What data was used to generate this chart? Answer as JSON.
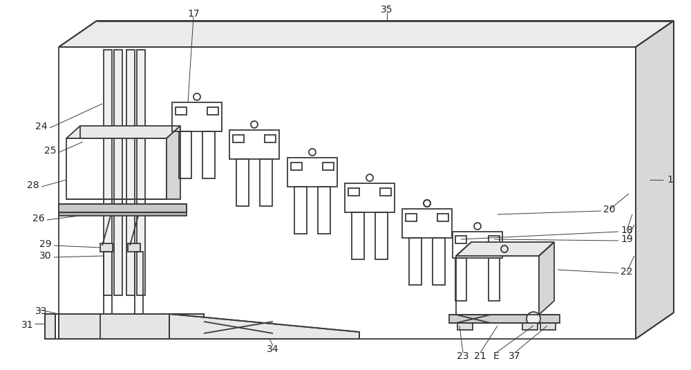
{
  "bg_color": "#ffffff",
  "line_color": "#3a3a3a",
  "lw": 1.3,
  "fig_width": 10.0,
  "fig_height": 5.35
}
